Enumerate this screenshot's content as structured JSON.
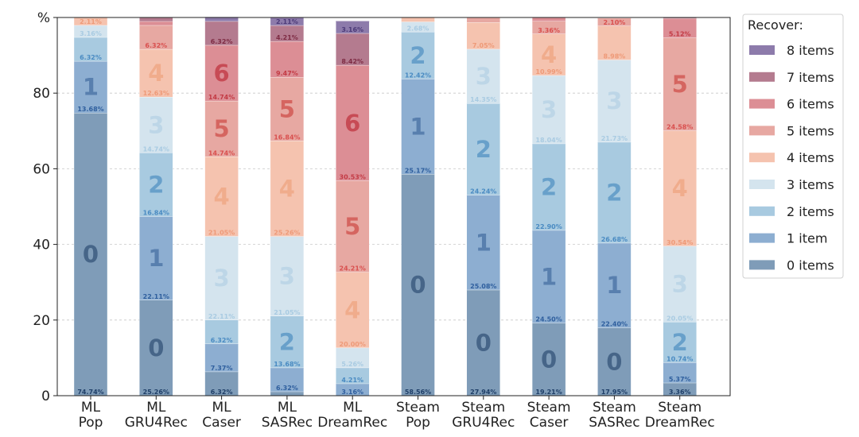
{
  "chart_data": {
    "type": "bar",
    "stacked": true,
    "ylabel": "%",
    "ylim": [
      0,
      100
    ],
    "yticks": [
      "0",
      "20",
      "40",
      "60",
      "80"
    ],
    "grid": "horizontal dashed",
    "legend": {
      "title": "Recover:",
      "placement": "right",
      "entries": [
        {
          "key": "8",
          "label": "8 items",
          "color": "#8d7bab"
        },
        {
          "key": "7",
          "label": "7 items",
          "color": "#b47b8f"
        },
        {
          "key": "6",
          "label": "6 items",
          "color": "#dc8e95"
        },
        {
          "key": "5",
          "label": "5 items",
          "color": "#e7a8a2"
        },
        {
          "key": "4",
          "label": "4 items",
          "color": "#f5c3af"
        },
        {
          "key": "3",
          "label": "3 items",
          "color": "#d4e4ee"
        },
        {
          "key": "2",
          "label": "2 items",
          "color": "#a8cae0"
        },
        {
          "key": "1",
          "label": "1 item",
          "color": "#8daed1"
        },
        {
          "key": "0",
          "label": "0 items",
          "color": "#7f9cb8"
        }
      ]
    },
    "categories": [
      {
        "line1": "ML",
        "line2": "Pop"
      },
      {
        "line1": "ML",
        "line2": "GRU4Rec"
      },
      {
        "line1": "ML",
        "line2": "Caser"
      },
      {
        "line1": "ML",
        "line2": "SASRec"
      },
      {
        "line1": "ML",
        "line2": "DreamRec"
      },
      {
        "line1": "Steam",
        "line2": "Pop"
      },
      {
        "line1": "Steam",
        "line2": "GRU4Rec"
      },
      {
        "line1": "Steam",
        "line2": "Caser"
      },
      {
        "line1": "Steam",
        "line2": "SASRec"
      },
      {
        "line1": "Steam",
        "line2": "DreamRec"
      }
    ],
    "series": [
      {
        "name": "0 items",
        "key": "0",
        "values": [
          74.74,
          25.26,
          6.32,
          1.05,
          0.0,
          58.56,
          27.94,
          19.21,
          17.95,
          3.36
        ]
      },
      {
        "name": "1 item",
        "key": "1",
        "values": [
          13.68,
          22.11,
          7.37,
          6.32,
          3.16,
          25.17,
          25.08,
          24.5,
          22.4,
          5.37
        ]
      },
      {
        "name": "2 items",
        "key": "2",
        "values": [
          6.32,
          16.84,
          6.32,
          13.68,
          4.21,
          12.42,
          24.24,
          22.9,
          26.68,
          10.74
        ]
      },
      {
        "name": "3 items",
        "key": "3",
        "values": [
          3.16,
          14.74,
          22.11,
          21.05,
          5.26,
          2.68,
          14.35,
          18.04,
          21.73,
          20.05
        ]
      },
      {
        "name": "4 items",
        "key": "4",
        "values": [
          2.11,
          12.63,
          21.05,
          25.26,
          20.0,
          1.17,
          7.05,
          10.99,
          8.98,
          30.54
        ]
      },
      {
        "name": "5 items",
        "key": "5",
        "values": [
          0.0,
          6.32,
          14.74,
          16.84,
          24.21,
          0.0,
          1.34,
          3.36,
          2.1,
          24.58
        ]
      },
      {
        "name": "6 items",
        "key": "6",
        "values": [
          0.0,
          1.05,
          14.74,
          9.47,
          30.53,
          0.0,
          0.0,
          1.0,
          0.16,
          5.12
        ]
      },
      {
        "name": "7 items",
        "key": "7",
        "values": [
          0.0,
          1.05,
          6.32,
          4.21,
          8.42,
          0.0,
          0.0,
          0.0,
          0.0,
          0.24
        ]
      },
      {
        "name": "8 items",
        "key": "8",
        "values": [
          0.0,
          0.0,
          1.05,
          2.11,
          3.16,
          0.0,
          0.0,
          0.0,
          0.0,
          0.0
        ]
      }
    ],
    "data_labels": {
      "0": [
        "74.74%",
        "25.26%",
        "6.32%",
        "",
        "",
        "58.56%",
        "27.94%",
        "19.21%",
        "17.95%",
        "3.36%"
      ],
      "1": [
        "13.68%",
        "22.11%",
        "7.37%",
        "6.32%",
        "3.16%",
        "25.17%",
        "25.08%",
        "24.50%",
        "22.40%",
        "5.37%"
      ],
      "2": [
        "6.32%",
        "16.84%",
        "6.32%",
        "13.68%",
        "4.21%",
        "12.42%",
        "24.24%",
        "22.90%",
        "26.68%",
        "10.74%"
      ],
      "3": [
        "3.16%",
        "14.74%",
        "22.11%",
        "21.05%",
        "5.26%",
        "2.68%",
        "14.35%",
        "18.04%",
        "21.73%",
        "20.05%"
      ],
      "4": [
        "2.11%",
        "12.63%",
        "21.05%",
        "25.26%",
        "20.00%",
        "",
        "7.05%",
        "10.99%",
        "8.98%",
        "30.54%"
      ],
      "5": [
        "",
        "6.32%",
        "14.74%",
        "16.84%",
        "24.21%",
        "",
        "",
        "3.36%",
        "2.10%",
        "24.58%"
      ],
      "6": [
        "",
        "",
        "14.74%",
        "9.47%",
        "30.53%",
        "",
        "",
        "",
        "",
        "5.12%"
      ],
      "7": [
        "",
        "",
        "6.32%",
        "4.21%",
        "8.42%",
        "",
        "",
        "",
        "",
        ""
      ],
      "8": [
        "",
        "",
        "",
        "2.11%",
        "3.16%",
        "",
        "",
        "",
        "",
        ""
      ]
    },
    "big_labels": [
      [
        {
          "key": "0",
          "text": "0"
        },
        {
          "key": "1",
          "text": "1"
        }
      ],
      [
        {
          "key": "0",
          "text": "0"
        },
        {
          "key": "1",
          "text": "1"
        },
        {
          "key": "2",
          "text": "2"
        },
        {
          "key": "3",
          "text": "3"
        },
        {
          "key": "4",
          "text": "4"
        }
      ],
      [
        {
          "key": "3",
          "text": "3"
        },
        {
          "key": "4",
          "text": "4"
        },
        {
          "key": "5",
          "text": "5"
        },
        {
          "key": "6",
          "text": "6"
        }
      ],
      [
        {
          "key": "2",
          "text": "2"
        },
        {
          "key": "3",
          "text": "3"
        },
        {
          "key": "4",
          "text": "4"
        },
        {
          "key": "5",
          "text": "5"
        }
      ],
      [
        {
          "key": "4",
          "text": "4"
        },
        {
          "key": "5",
          "text": "5"
        },
        {
          "key": "6",
          "text": "6"
        }
      ],
      [
        {
          "key": "0",
          "text": "0"
        },
        {
          "key": "1",
          "text": "1"
        },
        {
          "key": "2",
          "text": "2"
        }
      ],
      [
        {
          "key": "0",
          "text": "0"
        },
        {
          "key": "1",
          "text": "1"
        },
        {
          "key": "2",
          "text": "2"
        },
        {
          "key": "3",
          "text": "3"
        }
      ],
      [
        {
          "key": "0",
          "text": "0"
        },
        {
          "key": "1",
          "text": "1"
        },
        {
          "key": "2",
          "text": "2"
        },
        {
          "key": "3",
          "text": "3"
        },
        {
          "key": "4",
          "text": "4"
        }
      ],
      [
        {
          "key": "0",
          "text": "0"
        },
        {
          "key": "1",
          "text": "1"
        },
        {
          "key": "2",
          "text": "2"
        },
        {
          "key": "3",
          "text": "3"
        }
      ],
      [
        {
          "key": "2",
          "text": "2"
        },
        {
          "key": "3",
          "text": "3"
        },
        {
          "key": "4",
          "text": "4"
        },
        {
          "key": "5",
          "text": "5"
        }
      ]
    ],
    "label_colors": {
      "0": "#1f3f68",
      "1": "#2f5f9e",
      "2": "#4a8bc2",
      "3": "#a9cbe2",
      "4": "#ee9a78",
      "5": "#d9504f",
      "6": "#c33b45",
      "7": "#7e2c44",
      "8": "#4c3a78"
    },
    "big_label_colors": {
      "0": "#3d5c80",
      "1": "#4f77a8",
      "2": "#5e99c7",
      "3": "#b9d4e6",
      "4": "#f0a887",
      "5": "#d25a55",
      "6": "#c4404a",
      "7": "#7e2c44",
      "8": "#4c3a78"
    }
  }
}
